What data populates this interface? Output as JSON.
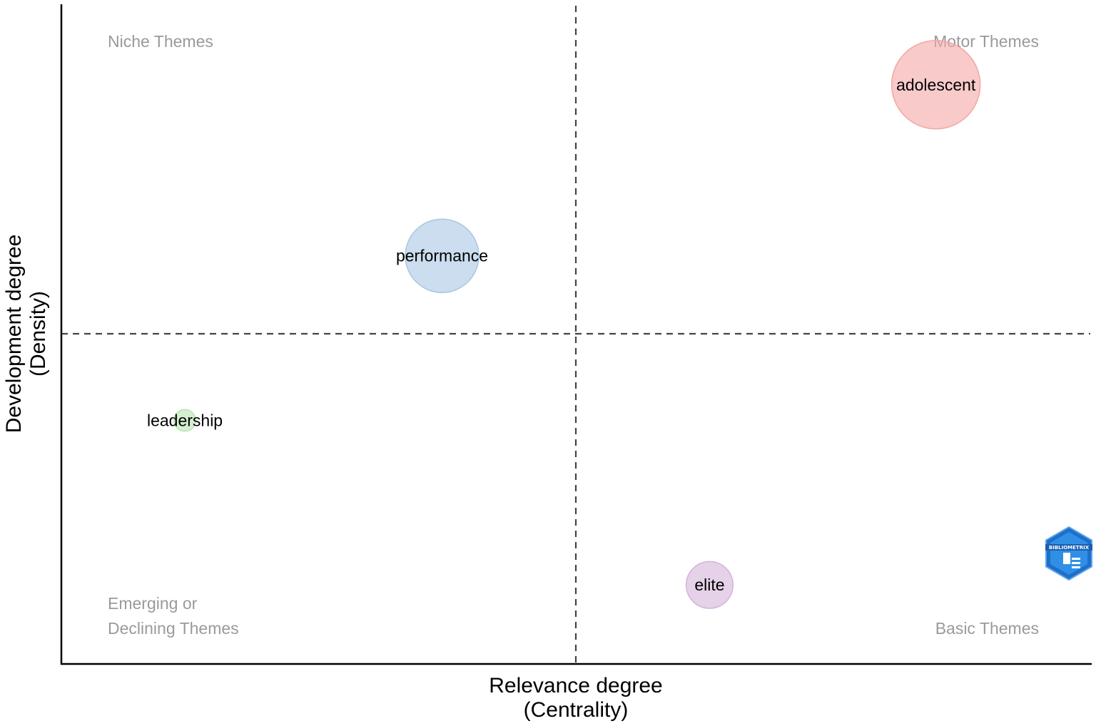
{
  "chart_data": {
    "type": "scatter",
    "title": "",
    "xlabel": "Relevance degree\n(Centrality)",
    "ylabel": "Development degree\n(Density)",
    "x_axis_title_lines": [
      "Relevance degree",
      "(Centrality)"
    ],
    "y_axis_title_lines": [
      "Development degree",
      "(Density)"
    ],
    "grid": false,
    "quadrant_labels": {
      "top_left": [
        "Niche Themes"
      ],
      "top_right": [
        "Motor Themes"
      ],
      "bottom_left": [
        "Emerging or",
        "Declining Themes"
      ],
      "bottom_right": [
        "Basic Themes"
      ]
    },
    "points": [
      {
        "label": "adolescent",
        "x": 0.85,
        "y": 0.88,
        "size": 1.0,
        "color": "#f4a6a6"
      },
      {
        "label": "performance",
        "x": 0.37,
        "y": 0.62,
        "size": 0.69,
        "color": "#a9c6e2"
      },
      {
        "label": "leadership",
        "x": 0.12,
        "y": 0.37,
        "size": 0.06,
        "color": "#b9e3b3"
      },
      {
        "label": "elite",
        "x": 0.63,
        "y": 0.12,
        "size": 0.28,
        "color": "#d4b3d9"
      }
    ],
    "xlim": [
      0,
      1
    ],
    "ylim": [
      0,
      1
    ],
    "x_reference": 0.5,
    "y_reference": 0.5
  },
  "logo": {
    "text": "BIBLIOMETRIX",
    "name": "bibliometrix-logo"
  }
}
